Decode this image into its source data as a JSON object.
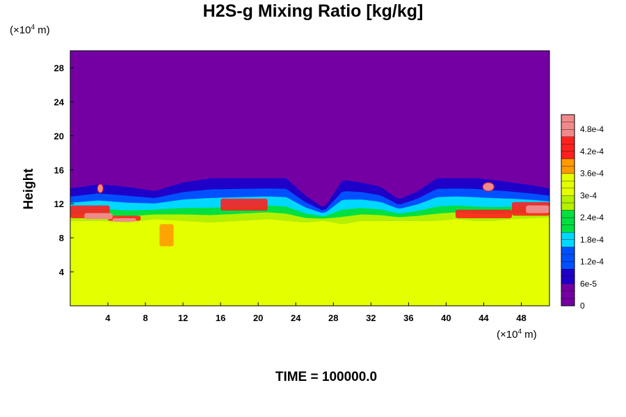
{
  "chart_data": {
    "type": "heatmap",
    "title": "H2S-g Mixing Ratio [kg/kg]",
    "ylabel": "Height",
    "x_unit": [
      "(×10",
      "4",
      " m)"
    ],
    "y_unit": [
      "(×10",
      "4",
      " m)"
    ],
    "xlim": [
      0,
      51
    ],
    "ylim": [
      0,
      30
    ],
    "x_ticks": [
      "4",
      "8",
      "12",
      "16",
      "20",
      "24",
      "28",
      "32",
      "36",
      "40",
      "44",
      "48"
    ],
    "y_ticks": [
      "4",
      "8",
      "12",
      "16",
      "20",
      "24",
      "28"
    ],
    "colorbar_ticks": [
      "0",
      "6e-5",
      "1.2e-4",
      "1.8e-4",
      "2.4e-4",
      "3e-4",
      "3.6e-4",
      "4.2e-4",
      "4.8e-4"
    ],
    "colorbar_range": [
      0,
      0.00052
    ],
    "colors": [
      "#7400a3",
      "#1e00c8",
      "#0050ff",
      "#00d8ff",
      "#00e040",
      "#b4f000",
      "#e4ff00",
      "#ff9a00",
      "#ff2020",
      "#f08a8a"
    ],
    "background_value": 0.0,
    "lower_value": 0.00036,
    "interface_top_profile": {
      "x": [
        0,
        3,
        6,
        9,
        12,
        15,
        18,
        21,
        23,
        25,
        27,
        29,
        31,
        33,
        35,
        37,
        39,
        41,
        43,
        45,
        47,
        49,
        51
      ],
      "y": [
        13.8,
        14.3,
        14.0,
        13.5,
        14.5,
        15.0,
        15.0,
        15.0,
        15.0,
        13.0,
        11.5,
        14.8,
        14.5,
        14.0,
        12.5,
        13.5,
        15.0,
        15.0,
        15.0,
        14.8,
        14.5,
        14.2,
        13.8
      ]
    },
    "interface_base_profile": {
      "x": [
        0,
        3,
        6,
        9,
        12,
        15,
        18,
        21,
        23,
        25,
        27,
        29,
        31,
        33,
        35,
        37,
        39,
        41,
        43,
        45,
        47,
        49,
        51
      ],
      "y": [
        10.0,
        10.0,
        9.8,
        10.2,
        10.0,
        9.8,
        10.0,
        10.2,
        10.0,
        9.8,
        10.0,
        9.6,
        10.0,
        10.0,
        10.0,
        10.0,
        10.0,
        10.2,
        10.0,
        10.0,
        10.2,
        10.3,
        10.4
      ]
    }
  },
  "footer": {
    "time_label": "TIME = 100000.0"
  }
}
